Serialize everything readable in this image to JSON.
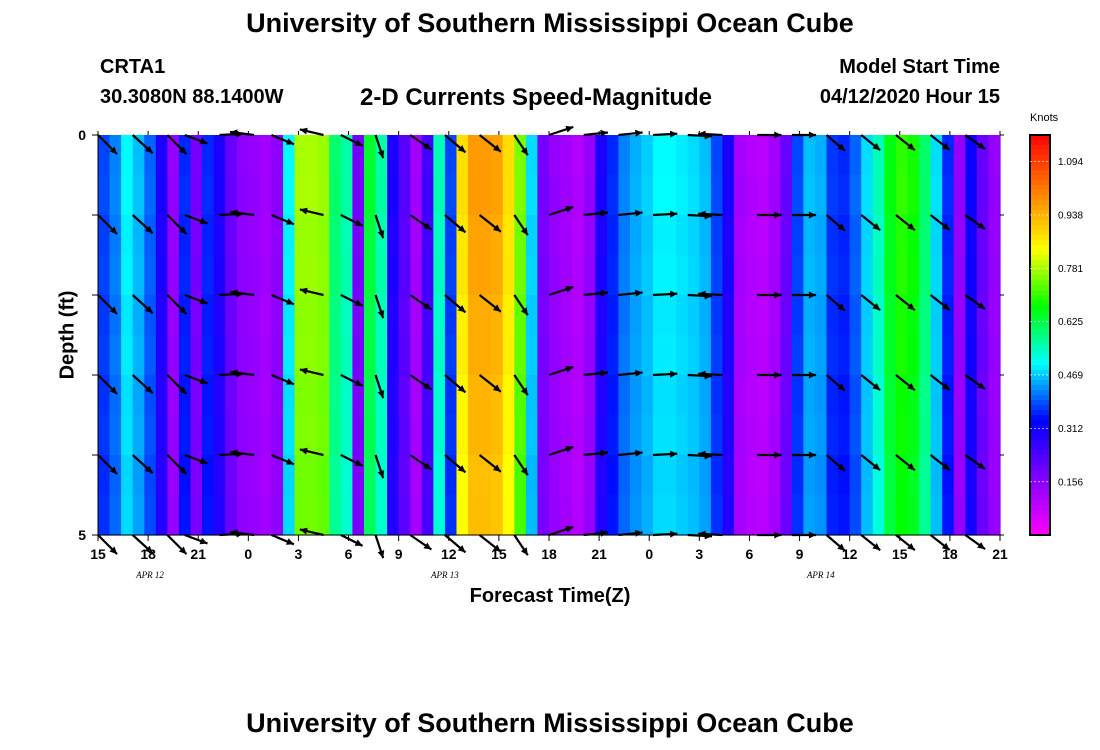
{
  "header": {
    "title": "University of Southern Mississippi Ocean Cube",
    "station": "CRTA1",
    "coords": "30.3080N 88.1400W",
    "subtitle": "2-D Currents Speed-Magnitude",
    "start_label": "Model Start Time",
    "start_value": "04/12/2020 Hour 15"
  },
  "footer": {
    "title": "University of Southern Mississippi Ocean Cube"
  },
  "chart_data": {
    "type": "heatmap",
    "title": "2-D Currents Speed-Magnitude",
    "xlabel": "Forecast Time(Z)",
    "ylabel": "Depth (ft)",
    "ylim": [
      0,
      5
    ],
    "y_ticks": [
      "0",
      "5"
    ],
    "time_hours": [
      0,
      78
    ],
    "x_ticks": [
      "15",
      "18",
      "21",
      "0",
      "3",
      "6",
      "9",
      "12",
      "15",
      "18",
      "21",
      "0",
      "3",
      "6",
      "9",
      "12",
      "15",
      "18",
      "21"
    ],
    "date_labels": [
      {
        "label": "APR 12",
        "hour": 4.5
      },
      {
        "label": "APR 13",
        "hour": 30
      },
      {
        "label": "APR 14",
        "hour": 62.5
      }
    ],
    "colorbar": {
      "units": "Knots",
      "ticks": [
        "1.094",
        "0.938",
        "0.781",
        "0.625",
        "0.469",
        "0.312",
        "0.156"
      ],
      "min": 0.0,
      "max": 1.172,
      "colors": [
        "#ff00ff",
        "#8000ff",
        "#0000ff",
        "#00ffff",
        "#00ff00",
        "#ffff00",
        "#ff8000",
        "#ff0000"
      ]
    },
    "speed_columns": [
      0.38,
      0.42,
      0.5,
      0.46,
      0.4,
      0.3,
      0.14,
      0.36,
      0.18,
      0.36,
      0.3,
      0.2,
      0.15,
      0.14,
      0.12,
      0.15,
      0.5,
      0.78,
      0.78,
      0.77,
      0.6,
      0.56,
      0.18,
      0.64,
      0.56,
      0.3,
      0.22,
      0.12,
      0.25,
      0.55,
      0.38,
      0.88,
      0.97,
      0.97,
      0.96,
      0.88,
      0.75,
      0.48,
      0.18,
      0.14,
      0.12,
      0.1,
      0.14,
      0.3,
      0.36,
      0.42,
      0.45,
      0.47,
      0.5,
      0.5,
      0.49,
      0.48,
      0.46,
      0.38,
      0.3,
      0.12,
      0.1,
      0.09,
      0.12,
      0.2,
      0.38,
      0.46,
      0.45,
      0.37,
      0.36,
      0.4,
      0.48,
      0.55,
      0.66,
      0.7,
      0.68,
      0.6,
      0.48,
      0.36,
      0.14,
      0.32,
      0.2,
      0.14
    ],
    "depth_rows": [
      0.0,
      0.5,
      1.0,
      1.5,
      2.0,
      2.5,
      3.0,
      3.5,
      4.0,
      4.5
    ],
    "vectors": {
      "hours": [
        0,
        3,
        6,
        7.5,
        10.5,
        13.5,
        15,
        19.5,
        21,
        24,
        27,
        30,
        33,
        36,
        39,
        42,
        45,
        48,
        51,
        54,
        57,
        60,
        63,
        66,
        69,
        72,
        75
      ],
      "depths": [
        0,
        1,
        2,
        3,
        4,
        5
      ],
      "u": [
        0.5,
        0.55,
        0.5,
        0.8,
        0.9,
        -0.8,
        0.85,
        -0.85,
        0.8,
        0.3,
        0.8,
        0.65,
        0.7,
        0.5,
        0.9,
        0.95,
        0.95,
        0.95,
        0.95,
        -0.95,
        1.0,
        1.0,
        0.7,
        0.75,
        0.75,
        0.7,
        0.7
      ],
      "v": [
        -0.5,
        -0.5,
        -0.5,
        -0.3,
        0.05,
        0.1,
        -0.35,
        0.2,
        -0.4,
        -0.9,
        -0.55,
        -0.55,
        -0.55,
        -0.75,
        0.3,
        0.1,
        0.1,
        0.05,
        -0.05,
        0.05,
        0.0,
        0.0,
        -0.6,
        -0.6,
        -0.6,
        -0.55,
        -0.5
      ],
      "len": [
        1.0,
        1.0,
        1.0,
        0.9,
        0.9,
        0.9,
        0.9,
        0.9,
        0.9,
        0.9,
        0.95,
        1.0,
        1.0,
        0.9,
        0.95,
        0.9,
        0.9,
        0.9,
        0.9,
        0.9,
        0.9,
        0.9,
        0.9,
        0.9,
        0.9,
        0.9,
        0.9
      ]
    }
  }
}
